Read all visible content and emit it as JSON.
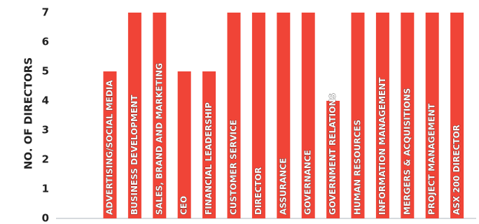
{
  "chart_data": {
    "type": "bar",
    "ylabel": "NO. OF DIRECTORS",
    "xlabel": "",
    "ylim": [
      0,
      7
    ],
    "yticks": [
      0,
      1,
      2,
      3,
      4,
      5,
      6,
      7
    ],
    "grid": false,
    "bar_color": "#f04437",
    "axis_color": "#c8cdd4",
    "categories": [
      "ADVERTISING/SOCIAL MEDIA",
      "BUSINESS DEVELOPMENT",
      "SALES, BRAND AND MARKETING",
      "CEO",
      "FINANCIAL LEADERSHIP",
      "CUSTOMER SERVICE",
      "DIRECTOR",
      "ASSURANCE",
      "GOVERNANCE",
      "GOVERNMENT RELATIONS",
      "HUMAN RESOURCES",
      "INFORMATION MANAGEMENT",
      "MERGERS & ACQUISITIONS",
      "PROJECT MANAGEMENT",
      "ASX 200 DIRECTOR"
    ],
    "values": [
      5,
      7,
      7,
      5,
      5,
      7,
      7,
      7,
      7,
      4,
      7,
      7,
      7,
      7,
      7
    ]
  }
}
